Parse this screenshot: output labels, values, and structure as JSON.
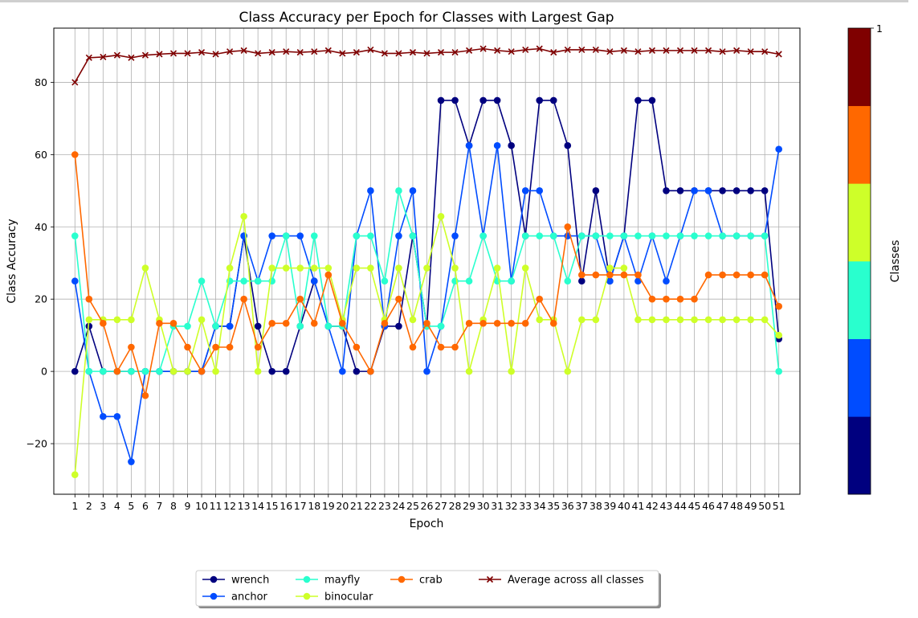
{
  "chart_data": {
    "type": "line",
    "title": "Class Accuracy per Epoch for Classes with Largest Gap",
    "xlabel": "Epoch",
    "ylabel": "Class Accuracy",
    "ylim": [
      -34,
      95
    ],
    "xlim": [
      -0.5,
      52.5
    ],
    "yticks": [
      -20,
      0,
      20,
      40,
      60,
      80
    ],
    "grid": true,
    "legend_position": "bottom-center",
    "colorbar": {
      "label": "Classes",
      "tick_label": "1",
      "colors": [
        "#00007f",
        "#004cff",
        "#29ffce",
        "#ceff29",
        "#ff6800",
        "#7f0000"
      ]
    },
    "x": [
      1,
      2,
      3,
      4,
      5,
      6,
      7,
      8,
      9,
      10,
      11,
      12,
      13,
      14,
      15,
      16,
      17,
      18,
      19,
      20,
      21,
      22,
      23,
      24,
      25,
      26,
      27,
      28,
      29,
      30,
      31,
      32,
      33,
      34,
      35,
      36,
      37,
      38,
      39,
      40,
      41,
      42,
      43,
      44,
      45,
      46,
      47,
      48,
      49,
      50,
      51
    ],
    "series": [
      {
        "name": "wrench",
        "color": "#00007f",
        "marker": "o",
        "values": [
          0,
          12.5,
          0,
          0,
          0,
          0,
          0,
          0,
          0,
          0,
          12.5,
          12.5,
          37.5,
          12.5,
          0,
          0,
          12.5,
          25,
          12.5,
          12.5,
          0,
          0,
          12.5,
          12.5,
          37.5,
          12.5,
          75,
          75,
          62.5,
          75,
          75,
          62.5,
          37.5,
          75,
          75,
          62.5,
          25,
          50,
          25,
          37.5,
          75,
          75,
          50,
          50,
          50,
          50,
          50,
          50,
          50,
          50,
          9
        ]
      },
      {
        "name": "anchor",
        "color": "#004cff",
        "marker": "o",
        "values": [
          25,
          0,
          -12.5,
          -12.5,
          -25,
          0,
          0,
          0,
          0,
          0,
          12.5,
          12.5,
          37.5,
          25,
          37.5,
          37.5,
          37.5,
          25,
          12.5,
          0,
          37.5,
          50,
          12.5,
          37.5,
          50,
          0,
          12.5,
          37.5,
          62.5,
          37.5,
          62.5,
          25,
          50,
          50,
          37.5,
          37.5,
          37.5,
          37.5,
          25,
          37.5,
          25,
          37.5,
          25,
          37.5,
          50,
          50,
          37.5,
          37.5,
          37.5,
          37.5,
          61.5
        ]
      },
      {
        "name": "mayfly",
        "color": "#29ffce",
        "marker": "o",
        "values": [
          37.5,
          0,
          0,
          0,
          0,
          0,
          0,
          12.5,
          12.5,
          25,
          12.5,
          25,
          25,
          25,
          25,
          37.5,
          12.5,
          37.5,
          12.5,
          12.5,
          37.5,
          37.5,
          25,
          50,
          37.5,
          12.5,
          12.5,
          25,
          25,
          37.5,
          25,
          25,
          37.5,
          37.5,
          37.5,
          25,
          37.5,
          37.5,
          37.5,
          37.5,
          37.5,
          37.5,
          37.5,
          37.5,
          37.5,
          37.5,
          37.5,
          37.5,
          37.5,
          37.5,
          0
        ]
      },
      {
        "name": "binocular",
        "color": "#ceff29",
        "marker": "o",
        "values": [
          -28.6,
          14.3,
          14.3,
          14.3,
          14.3,
          28.6,
          14.3,
          0,
          0,
          14.3,
          0,
          28.6,
          42.9,
          0,
          28.6,
          28.6,
          28.6,
          28.6,
          28.6,
          14.3,
          28.6,
          28.6,
          14.3,
          28.6,
          14.3,
          28.6,
          42.9,
          28.6,
          0,
          14.3,
          28.6,
          0,
          28.6,
          14.3,
          14.3,
          0,
          14.3,
          14.3,
          28.6,
          28.6,
          14.3,
          14.3,
          14.3,
          14.3,
          14.3,
          14.3,
          14.3,
          14.3,
          14.3,
          14.3,
          10
        ]
      },
      {
        "name": "crab",
        "color": "#ff6800",
        "marker": "o",
        "values": [
          60,
          20,
          13.3,
          0,
          6.7,
          -6.7,
          13.3,
          13.3,
          6.7,
          0,
          6.7,
          6.7,
          20,
          6.7,
          13.3,
          13.3,
          20,
          13.3,
          26.7,
          13.3,
          6.7,
          0,
          13.3,
          20,
          6.7,
          13.3,
          6.7,
          6.7,
          13.3,
          13.3,
          13.3,
          13.3,
          13.3,
          20,
          13.3,
          40,
          26.7,
          26.7,
          26.7,
          26.7,
          26.7,
          20,
          20,
          20,
          20,
          26.7,
          26.7,
          26.7,
          26.7,
          26.7,
          18
        ]
      },
      {
        "name": "Average across all classes",
        "color": "#7f0000",
        "marker": "x",
        "values": [
          80,
          86.8,
          87,
          87.5,
          86.8,
          87.5,
          87.8,
          88,
          88,
          88.3,
          87.8,
          88.5,
          88.8,
          88,
          88.3,
          88.5,
          88.3,
          88.5,
          88.8,
          88,
          88.3,
          89,
          88,
          88,
          88.3,
          88,
          88.3,
          88.3,
          88.8,
          89.3,
          88.8,
          88.5,
          89,
          89.3,
          88.3,
          89,
          89,
          89,
          88.5,
          88.8,
          88.5,
          88.8,
          88.8,
          88.8,
          88.8,
          88.8,
          88.5,
          88.8,
          88.5,
          88.5,
          87.8
        ]
      }
    ]
  }
}
